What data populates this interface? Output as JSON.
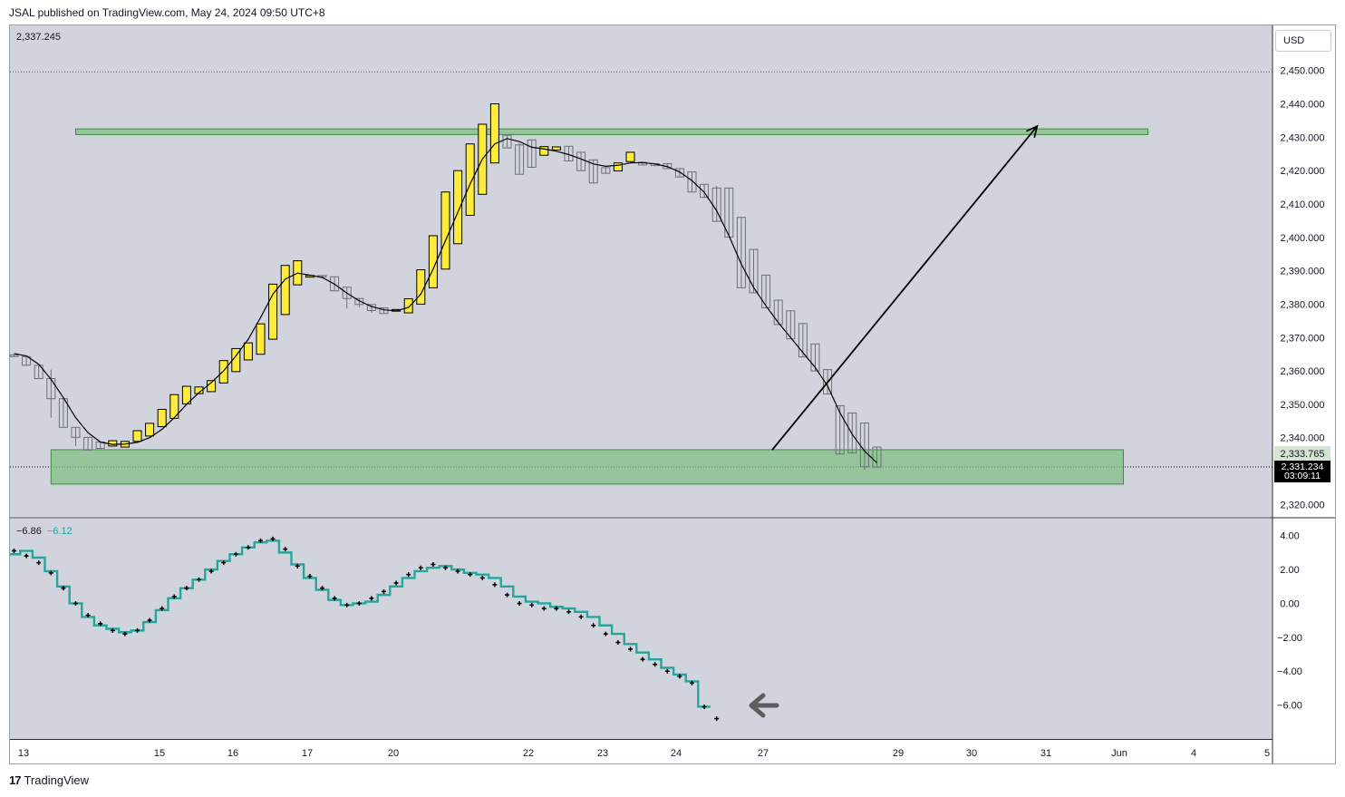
{
  "header": {
    "publish_line": "JSAL published on TradingView.com, May 24, 2024 09:50 UTC+8"
  },
  "currency_button": "USD",
  "ohlc_readout": "2,337.245",
  "footer": {
    "brand_mark": "17",
    "brand": "TradingView"
  },
  "indicator": {
    "value1": "−6.86",
    "value2": "−6.12"
  },
  "price_scale": {
    "last_price": "2,333.765",
    "current_price": "2,331.234",
    "countdown": "03:09:11"
  },
  "colors": {
    "bg": "#d1d4dc",
    "bull": "#ffeb3b",
    "zone": "#7fbf7f",
    "line": "#26a69a",
    "arrow": "#000000"
  },
  "icons": [
    "tradingview-logo-icon",
    "left-arrow-icon"
  ],
  "chart_data": [
    {
      "type": "candlestick",
      "title": "",
      "y_tick_labels": [
        "2,450.000",
        "2,440.000",
        "2,430.000",
        "2,420.000",
        "2,410.000",
        "2,400.000",
        "2,390.000",
        "2,380.000",
        "2,370.000",
        "2,360.000",
        "2,350.000",
        "2,340.000",
        "2,320.000"
      ],
      "y_ticks": [
        2450,
        2440,
        2430,
        2420,
        2410,
        2400,
        2390,
        2380,
        2370,
        2360,
        2350,
        2340,
        2320
      ],
      "ylim": [
        2316.3,
        2463.5
      ],
      "x_tick_labels": [
        "13",
        "15",
        "16",
        "17",
        "20",
        "22",
        "23",
        "24",
        "27",
        "29",
        "30",
        "31",
        "Jun",
        "4",
        "5"
      ],
      "candles": [
        [
          2364.8,
          2364.3,
          2364.3,
          2364.8
        ],
        [
          2364.3,
          2361.7,
          2361.7,
          2364.3
        ],
        [
          2361.7,
          2357.7,
          2357.7,
          2361.7
        ],
        [
          2357.7,
          2351.7,
          2346.0,
          2360.4
        ],
        [
          2351.7,
          2343.1,
          2343.1,
          2351.7
        ],
        [
          2343.1,
          2340.1,
          2337.5,
          2343.1
        ],
        [
          2340.1,
          2336.3,
          2336.3,
          2340.1
        ],
        [
          2338.7,
          2336.8,
          2336.8,
          2338.7
        ],
        [
          2337.5,
          2339.1,
          2337.5,
          2339.1
        ],
        [
          2337.2,
          2338.9,
          2337.2,
          2338.9
        ],
        [
          2338.9,
          2342.1,
          2338.9,
          2342.1
        ],
        [
          2340.5,
          2344.3,
          2340.5,
          2344.3
        ],
        [
          2343.3,
          2348.5,
          2343.3,
          2348.5
        ],
        [
          2345.8,
          2352.9,
          2345.8,
          2352.9
        ],
        [
          2350.1,
          2355.4,
          2350.1,
          2355.4
        ],
        [
          2353.2,
          2355.2,
          2353.2,
          2355.2
        ],
        [
          2353.8,
          2357.1,
          2353.8,
          2357.1
        ],
        [
          2356.4,
          2363.1,
          2356.4,
          2363.1
        ],
        [
          2359.8,
          2366.7,
          2359.8,
          2366.7
        ],
        [
          2363.3,
          2368.4,
          2363.3,
          2368.4
        ],
        [
          2365.0,
          2374.1,
          2365.0,
          2374.1
        ],
        [
          2369.5,
          2386.0,
          2369.5,
          2386.0
        ],
        [
          2376.9,
          2391.6,
          2376.9,
          2391.6
        ],
        [
          2385.8,
          2393.0,
          2385.8,
          2393.0
        ],
        [
          2388.1,
          2388.6,
          2388.1,
          2388.6
        ],
        [
          2388.6,
          2388.2,
          2388.2,
          2388.6
        ],
        [
          2388.2,
          2384.0,
          2384.0,
          2388.2
        ],
        [
          2385.1,
          2381.7,
          2378.7,
          2385.1
        ],
        [
          2381.7,
          2379.9,
          2379.1,
          2381.7
        ],
        [
          2379.9,
          2378.1,
          2377.4,
          2379.9
        ],
        [
          2378.9,
          2377.2,
          2377.2,
          2378.9
        ],
        [
          2377.9,
          2378.4,
          2377.9,
          2378.4
        ],
        [
          2377.4,
          2381.6,
          2377.4,
          2381.6
        ],
        [
          2380.0,
          2390.3,
          2380.0,
          2390.3
        ],
        [
          2384.9,
          2400.5,
          2384.9,
          2400.5
        ],
        [
          2390.5,
          2413.6,
          2390.5,
          2413.6
        ],
        [
          2398.1,
          2420.0,
          2398.1,
          2420.0
        ],
        [
          2406.6,
          2428.0,
          2406.6,
          2428.0
        ],
        [
          2412.9,
          2433.9,
          2412.9,
          2433.9
        ],
        [
          2422.3,
          2440.0,
          2422.3,
          2440.0
        ],
        [
          2430.6,
          2426.8,
          2426.8,
          2430.6
        ],
        [
          2427.7,
          2418.9,
          2418.9,
          2428.2
        ],
        [
          2429.2,
          2421.0,
          2421.0,
          2429.2
        ],
        [
          2424.6,
          2427.2,
          2424.6,
          2427.2
        ],
        [
          2426.2,
          2427.1,
          2426.2,
          2427.1
        ],
        [
          2427.3,
          2422.9,
          2422.9,
          2427.3
        ],
        [
          2425.5,
          2420.0,
          2420.0,
          2425.5
        ],
        [
          2423.2,
          2416.3,
          2416.3,
          2423.2
        ],
        [
          2420.9,
          2419.2,
          2419.2,
          2420.9
        ],
        [
          2419.9,
          2422.3,
          2419.9,
          2422.3
        ],
        [
          2422.7,
          2425.5,
          2422.7,
          2425.5
        ],
        [
          2422.5,
          2421.7,
          2421.7,
          2422.5
        ],
        [
          2422.1,
          2421.5,
          2421.5,
          2422.1
        ],
        [
          2422.1,
          2420.6,
          2420.6,
          2422.1
        ],
        [
          2420.6,
          2418.1,
          2418.1,
          2420.6
        ],
        [
          2419.6,
          2413.6,
          2413.6,
          2419.6
        ],
        [
          2415.9,
          2412.0,
          2412.0,
          2415.9
        ],
        [
          2414.8,
          2404.8,
          2404.8,
          2415.4
        ],
        [
          2414.8,
          2400.1,
          2400.1,
          2414.8
        ],
        [
          2406.0,
          2384.9,
          2384.9,
          2406.0
        ],
        [
          2396.4,
          2383.4,
          2383.4,
          2396.4
        ],
        [
          2388.7,
          2378.9,
          2378.9,
          2388.7
        ],
        [
          2381.2,
          2373.9,
          2373.9,
          2381.2
        ],
        [
          2378.0,
          2369.6,
          2369.6,
          2378.0
        ],
        [
          2374.2,
          2364.2,
          2364.2,
          2374.2
        ],
        [
          2368.1,
          2360.0,
          2360.0,
          2368.1
        ],
        [
          2360.4,
          2353.1,
          2353.1,
          2360.4
        ],
        [
          2349.6,
          2335.1,
          2335.1,
          2349.6
        ],
        [
          2347.4,
          2335.4,
          2335.4,
          2347.4
        ],
        [
          2344.4,
          2331.3,
          2330.4,
          2344.4
        ],
        [
          2337.2,
          2331.2,
          2331.2,
          2337.2
        ]
      ],
      "moving_average": [
        2365.2,
        2364.5,
        2362.0,
        2357.5,
        2352.0,
        2346.0,
        2341.5,
        2338.7,
        2338.0,
        2338.1,
        2338.6,
        2340.0,
        2342.5,
        2346.0,
        2350.0,
        2353.5,
        2356.5,
        2360.0,
        2364.5,
        2369.5,
        2376.0,
        2383.0,
        2387.5,
        2389.3,
        2388.7,
        2388.0,
        2386.0,
        2383.3,
        2381.0,
        2379.3,
        2378.3,
        2378.0,
        2379.0,
        2383.0,
        2390.5,
        2399.0,
        2407.5,
        2416.0,
        2423.5,
        2428.0,
        2429.6,
        2428.7,
        2427.0,
        2426.5,
        2425.8,
        2424.8,
        2423.5,
        2422.0,
        2421.3,
        2421.6,
        2422.3,
        2422.4,
        2422.0,
        2421.2,
        2419.6,
        2417.0,
        2413.5,
        2408.0,
        2400.5,
        2392.0,
        2385.0,
        2379.5,
        2374.5,
        2370.0,
        2365.5,
        2361.0,
        2355.5,
        2347.5,
        2341.0,
        2336.0,
        2332.5
      ],
      "zones": [
        {
          "from_index": 5,
          "to_index": 92,
          "top": 2432.5,
          "bottom": 2430.8,
          "note": "resistance"
        },
        {
          "from_index": 3,
          "to_index": 90,
          "top": 2336.4,
          "bottom": 2326.1,
          "note": "support"
        }
      ],
      "trend_arrow": {
        "from": [
          61.5,
          2336.3
        ],
        "to": [
          83.0,
          2433.3
        ]
      },
      "last_price": 2333.765,
      "current_price": 2331.234
    },
    {
      "type": "line",
      "title": "",
      "ylim": [
        -8.0,
        5.0
      ],
      "y_tick_labels": [
        "4.00",
        "2.00",
        "0.00",
        "−2.00",
        "−4.00",
        "−6.00"
      ],
      "y_ticks": [
        4,
        2,
        0,
        -2,
        -4,
        -6
      ],
      "series": [
        {
          "style": "step",
          "values": [
            2.9,
            3.1,
            2.7,
            1.9,
            1.0,
            0.0,
            -0.8,
            -1.3,
            -1.5,
            -1.7,
            -1.6,
            -1.1,
            -0.4,
            0.3,
            0.9,
            1.4,
            2.0,
            2.5,
            2.9,
            3.3,
            3.6,
            3.7,
            3.0,
            2.3,
            1.5,
            0.8,
            0.2,
            -0.1,
            0.0,
            0.1,
            0.5,
            1.0,
            1.5,
            1.9,
            2.1,
            2.2,
            2.0,
            1.8,
            1.7,
            1.5,
            1.0,
            0.4,
            0.1,
            0.0,
            -0.2,
            -0.3,
            -0.5,
            -0.8,
            -1.3,
            -1.8,
            -2.4,
            -2.9,
            -3.3,
            -3.8,
            -4.2,
            -4.6,
            -6.1
          ]
        },
        {
          "style": "dots",
          "values": [
            3.1,
            2.8,
            2.4,
            1.8,
            0.9,
            0.0,
            -0.7,
            -1.2,
            -1.6,
            -1.8,
            -1.6,
            -1.0,
            -0.3,
            0.4,
            0.9,
            1.4,
            1.9,
            2.4,
            2.9,
            3.3,
            3.7,
            3.8,
            3.2,
            2.2,
            1.6,
            0.9,
            0.3,
            -0.1,
            0.0,
            0.3,
            0.7,
            1.2,
            1.7,
            2.1,
            2.3,
            2.1,
            1.9,
            1.7,
            1.5,
            1.1,
            0.5,
            0.0,
            -0.1,
            -0.3,
            -0.3,
            -0.5,
            -0.8,
            -1.3,
            -1.8,
            -2.3,
            -2.7,
            -3.3,
            -3.6,
            -4.0,
            -4.3,
            -4.7,
            -6.1,
            -6.8
          ]
        }
      ]
    }
  ]
}
